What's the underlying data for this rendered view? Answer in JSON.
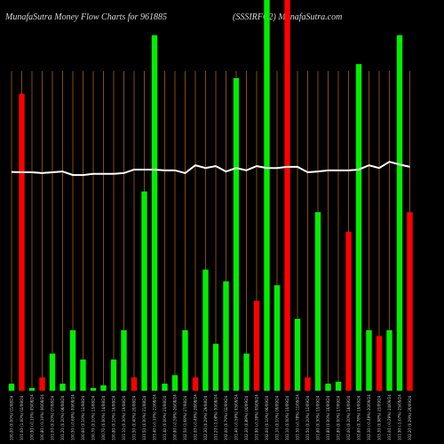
{
  "chart_data": {
    "type": "bar",
    "title": "MunafaSutra  Money Flow  Charts for 961885",
    "subtitle": "(SSSIRFC2) MunafaSutra.com",
    "categories": [
      "100.00 (0.00%) 01/08/24",
      "101.00 (1.00%) 02/08/24",
      "100.90 (-0.10%) 05/08/24",
      "100.80 (-0.10%) 06/08/24",
      "101.00 (0.20%) 07/08/24",
      "101.20 (0.20%) 08/08/24",
      "100.50 (-0.69%) 09/08/24",
      "100.60 (0.10%) 12/08/24",
      "100.70 (0.10%) 13/08/24",
      "100.70 (0.00%) 14/08/24",
      "100.80 (0.10%) 16/08/24",
      "101.10 (0.30%) 19/08/24",
      "101.50 (0.40%) 20/08/24",
      "101.50 (0.00%) 21/08/24",
      "101.40 (-0.10%) 22/08/24",
      "101.40 (0.00%) 23/08/24",
      "100.80 (-0.59%) 26/08/24",
      "102.50 (1.69%) 27/08/24",
      "102.00 (-0.49%) 28/08/24",
      "102.30 (0.29%) 29/08/24",
      "101.20 (-1.08%) 30/08/24",
      "102.00 (0.79%) 02/09/24",
      "101.40 (-0.59%) 03/09/24",
      "102.30 (0.89%) 04/09/24",
      "101.90 (-0.39%) 05/09/24",
      "102.00 (0.10%) 06/09/24",
      "102.10 (0.10%) 09/09/24",
      "102.10 (0.00%) 10/09/24",
      "101.30 (-0.78%) 11/09/24",
      "101.50 (0.20%) 12/09/24",
      "101.80 (0.30%) 13/09/24",
      "101.80 (0.00%) 16/09/24",
      "101.80 (0.00%) 17/09/24",
      "102.00 (0.20%) 18/09/24",
      "102.80 (0.78%) 19/09/24",
      "102.30 (-0.49%) 20/09/24",
      "103.30 (0.98%) 23/09/24",
      "103.00 (-0.29%) 24/09/24",
      "101.90 (-1.07%) 25/09/24",
      "102.20 (0.29%) 26/09/24"
    ],
    "values": [
      1.8,
      76,
      0.7,
      3.4,
      9.5,
      1.8,
      15.5,
      8,
      0.7,
      1.4,
      8,
      15.5,
      3.4,
      51,
      91,
      1.8,
      4,
      15.5,
      3.4,
      31,
      12,
      28,
      80,
      9.5,
      23,
      100,
      27,
      100,
      18.4,
      3.4,
      45.7,
      1.8,
      2.3,
      40.7,
      83.6,
      15.5,
      14,
      15.5,
      91,
      45.7
    ],
    "colors": [
      "#00ee00",
      "#ff0000",
      "#00ee00",
      "#ff0000",
      "#00ee00",
      "#00ee00",
      "#00ee00",
      "#00ee00",
      "#00ee00",
      "#00ee00",
      "#00ee00",
      "#00ee00",
      "#ff0000",
      "#00ee00",
      "#00ee00",
      "#00ee00",
      "#00ee00",
      "#00ee00",
      "#ff0000",
      "#00ee00",
      "#00ee00",
      "#00ee00",
      "#00ee00",
      "#00ee00",
      "#ff0000",
      "#00ee00",
      "#00ee00",
      "#ff0000",
      "#00ee00",
      "#ff0000",
      "#00ee00",
      "#00ee00",
      "#00ee00",
      "#ff0000",
      "#00ee00",
      "#00ee00",
      "#ff0000",
      "#00ee00",
      "#00ee00",
      "#ff0000"
    ],
    "line": {
      "color": "#ffffff",
      "values": [
        56,
        55.9,
        55.9,
        55.7,
        55.9,
        56.1,
        55.2,
        55.2,
        55.5,
        55.5,
        55.5,
        55.7,
        56.6,
        56.6,
        56.6,
        56.4,
        56.4,
        55.7,
        57.7,
        57,
        57.5,
        56.1,
        57,
        56.4,
        57.5,
        57,
        57,
        57.3,
        57.3,
        55.9,
        56.1,
        56.4,
        56.4,
        56.4,
        56.6,
        57.7,
        57,
        58.6,
        57.9,
        57.3
      ]
    },
    "ylim": [
      0,
      100
    ],
    "grid": true,
    "grid_color": "#8a4a0c"
  }
}
